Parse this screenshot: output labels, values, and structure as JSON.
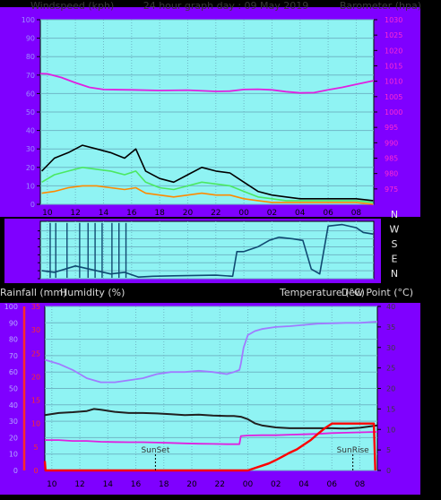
{
  "header": {
    "left": "Windspeed (kph)",
    "center": "24 hour graph day : 09 May 2019",
    "right": "Barometer (hpa)"
  },
  "x_ticks": [
    "10",
    "12",
    "14",
    "16",
    "18",
    "20",
    "22",
    "00",
    "02",
    "04",
    "06",
    "08"
  ],
  "colors": {
    "panel": "#7f00ff",
    "plot": "#8ff3f3",
    "grid": "#6fb7c6",
    "wind_gust": "#000000",
    "wind_avg": "#4be862",
    "wind_lull": "#ff8a00",
    "barometer": "#e020e0",
    "direction": "#104a72",
    "temperature": "#202020",
    "dewpoint": "#a07cff",
    "humidity": "#e020e0",
    "rain": "#ff0000",
    "wind_axis_text": "#9c8cff",
    "baro_axis_text": "#ff2ad2",
    "bottom_left_axis_text": "#b4a8ff",
    "rain_axis_text": "#ff2a2a",
    "temp_axis_text": "#3a3a3a"
  },
  "chart_data": [
    {
      "type": "line",
      "title": "24 hour graph day : 09 May 2019",
      "xlabel": "",
      "ylabel_left": "Windspeed (kph)",
      "ylabel_right": "Barometer (hpa)",
      "x_ticks": [
        "10",
        "12",
        "14",
        "16",
        "18",
        "20",
        "22",
        "00",
        "02",
        "04",
        "06",
        "08"
      ],
      "hour_range": [
        9.5,
        9.25
      ],
      "ylim_left": [
        0,
        100
      ],
      "yticks_left": [
        0,
        10,
        20,
        30,
        40,
        50,
        60,
        70,
        80,
        90,
        100
      ],
      "ylim_right": [
        970,
        1030
      ],
      "yticks_right": [
        975,
        980,
        985,
        990,
        995,
        1000,
        1005,
        1010,
        1015,
        1020,
        1025,
        1030
      ],
      "grid": true,
      "series": [
        {
          "axis": "left",
          "x_hours": [
            9.6,
            10.5,
            11.5,
            12.5,
            13.5,
            14.5,
            15.5,
            16.3,
            17,
            18,
            19,
            20,
            21,
            22,
            23,
            0,
            1,
            2,
            3,
            4,
            5,
            6,
            7,
            8,
            9.2
          ],
          "values": [
            18,
            25,
            28,
            32,
            30,
            28,
            25,
            30,
            18,
            14,
            12,
            16,
            20,
            18,
            17,
            12,
            7,
            5,
            4,
            3,
            3,
            3,
            3,
            3,
            2
          ]
        },
        {
          "axis": "left",
          "x_hours": [
            9.6,
            10.5,
            11.5,
            12.5,
            13.5,
            14.5,
            15.5,
            16.3,
            17,
            18,
            19,
            20,
            21,
            22,
            23,
            0,
            1,
            2,
            3,
            4,
            5,
            6,
            7,
            8,
            9.2
          ],
          "values": [
            12,
            16,
            18,
            20,
            19,
            18,
            16,
            18,
            12,
            9,
            8,
            10,
            12,
            11,
            10,
            7,
            4,
            3,
            2,
            2,
            2,
            2,
            2,
            2,
            1
          ]
        },
        {
          "axis": "left",
          "x_hours": [
            9.6,
            10.5,
            11.5,
            12.5,
            13.5,
            14.5,
            15.5,
            16.3,
            17,
            18,
            19,
            20,
            21,
            22,
            23,
            0,
            1,
            2,
            3,
            4,
            5,
            6,
            7,
            8,
            9.2
          ],
          "values": [
            6,
            7,
            9,
            10,
            10,
            9,
            8,
            9,
            6,
            5,
            4,
            5,
            6,
            5,
            5,
            3,
            2,
            1,
            1,
            1,
            1,
            1,
            1,
            1,
            0
          ]
        },
        {
          "axis": "right",
          "x_hours": [
            9.5,
            10,
            11,
            12,
            13,
            14,
            16,
            18,
            20,
            22,
            23,
            0,
            1,
            2,
            3,
            4,
            5,
            6,
            7,
            8,
            9.25
          ],
          "values": [
            1012.5,
            1012.4,
            1011.2,
            1009.5,
            1008.0,
            1007.3,
            1007.2,
            1007.0,
            1007.1,
            1006.7,
            1006.8,
            1007.3,
            1007.4,
            1007.2,
            1006.6,
            1006.2,
            1006.3,
            1007.2,
            1008.0,
            1009.0,
            1010.2
          ]
        }
      ]
    },
    {
      "type": "line",
      "ylabel_right": [
        "N",
        "W",
        "S",
        "E",
        "N"
      ],
      "x_hours": [
        9.6,
        10.5,
        12,
        13,
        14.5,
        15.5,
        16.5,
        17.5,
        19,
        20.5,
        22,
        23.2,
        23.5,
        0,
        1,
        1.8,
        2.5,
        3.5,
        4.2,
        4.8,
        5.4,
        6.0,
        7.0,
        8.0,
        8.5,
        9.2
      ],
      "values": [
        50,
        40,
        80,
        60,
        30,
        40,
        10,
        15,
        18,
        20,
        22,
        15,
        170,
        170,
        200,
        240,
        260,
        250,
        240,
        60,
        30,
        330,
        340,
        320,
        290,
        280
      ]
    },
    {
      "type": "line",
      "ylabel_left_1": "Rainfall (mm)",
      "ylabel_left_2": "Humidity (%)",
      "ylabel_right": "Temperature (°C)",
      "ylabel_right_2": "Dew Point (°C)",
      "x_ticks": [
        "10",
        "12",
        "14",
        "16",
        "18",
        "20",
        "22",
        "00",
        "02",
        "04",
        "06",
        "08"
      ],
      "ylim_humidity": [
        0,
        100
      ],
      "yticks_humidity": [
        0,
        10,
        20,
        30,
        40,
        50,
        60,
        70,
        80,
        90,
        100
      ],
      "ylim_rain": [
        0,
        35
      ],
      "yticks_rain": [
        0,
        5,
        10,
        15,
        20,
        25,
        30,
        35
      ],
      "ylim_temp": [
        0,
        40
      ],
      "yticks_temp": [
        0,
        5,
        10,
        15,
        20,
        25,
        30,
        35,
        40
      ],
      "annotations": [
        {
          "text": "SunSet",
          "x_hour": 17.4
        },
        {
          "text": "SunRise",
          "x_hour": 7.5
        }
      ],
      "grid": true,
      "series": [
        {
          "axis": "temperature",
          "x_hours": [
            9.5,
            10.5,
            11.5,
            12.5,
            13,
            13.5,
            14.5,
            15.5,
            16.5,
            17.5,
            18.5,
            19.5,
            20.5,
            21.5,
            22.5,
            23,
            23.5,
            0,
            0.5,
            1,
            2,
            3,
            4,
            5,
            6,
            7,
            8,
            9.25
          ],
          "values": [
            13.5,
            14.0,
            14.2,
            14.5,
            15.0,
            14.8,
            14.3,
            14.0,
            14.0,
            13.9,
            13.7,
            13.5,
            13.6,
            13.4,
            13.3,
            13.3,
            13.1,
            12.5,
            11.5,
            11.0,
            10.5,
            10.3,
            10.3,
            10.3,
            10.3,
            10.2,
            10.4,
            11.0
          ]
        },
        {
          "axis": "temperature",
          "x_hours": [
            9.5,
            10.5,
            11.5,
            12.5,
            13.5,
            14.5,
            15.5,
            16.5,
            17.5,
            18.5,
            19.5,
            20.5,
            21.5,
            22.5,
            23,
            23.4,
            23.5,
            23.7,
            0,
            0.5,
            1,
            2,
            3,
            4,
            5,
            6,
            7,
            8,
            9.25
          ],
          "values": [
            27.0,
            26.0,
            24.5,
            22.5,
            21.5,
            21.5,
            22.0,
            22.5,
            23.5,
            24.0,
            24.0,
            24.3,
            24.0,
            23.5,
            24.0,
            24.5,
            26.0,
            30.0,
            33.0,
            34.0,
            34.5,
            35.0,
            35.2,
            35.5,
            35.8,
            35.9,
            36.0,
            36.0,
            36.3
          ]
        },
        {
          "axis": "humidity",
          "x_hours": [
            9.5,
            10.5,
            11.5,
            12.5,
            13.5,
            14.5,
            15.5,
            16.5,
            17.5,
            18.5,
            19.5,
            20.5,
            21.5,
            22.5,
            23.4,
            23.5,
            0,
            1,
            2,
            3,
            4,
            5,
            6,
            7,
            8,
            9.25
          ],
          "values": [
            18.5,
            18.5,
            18.0,
            18.0,
            17.5,
            17.3,
            17.2,
            17.2,
            17.0,
            16.8,
            16.5,
            16.3,
            16.2,
            16.0,
            16.0,
            21.0,
            21.3,
            21.5,
            21.5,
            21.8,
            22.0,
            22.3,
            22.8,
            23.0,
            23.2,
            23.5
          ]
        },
        {
          "axis": "rain",
          "x_hours": [
            9.5,
            9.55,
            9.6,
            23.5,
            0,
            0.5,
            1,
            1.5,
            2,
            2.5,
            3,
            3.5,
            4,
            4.5,
            5,
            5.5,
            6,
            6.3,
            8.9,
            9.0,
            9.1
          ],
          "values": [
            2.0,
            0.0,
            0.0,
            0.0,
            0.0,
            0.5,
            1.0,
            1.5,
            2.2,
            3.0,
            3.8,
            4.5,
            5.5,
            6.5,
            7.8,
            9.0,
            10.0,
            10.0,
            10.0,
            10.0,
            0.0
          ]
        }
      ]
    }
  ]
}
